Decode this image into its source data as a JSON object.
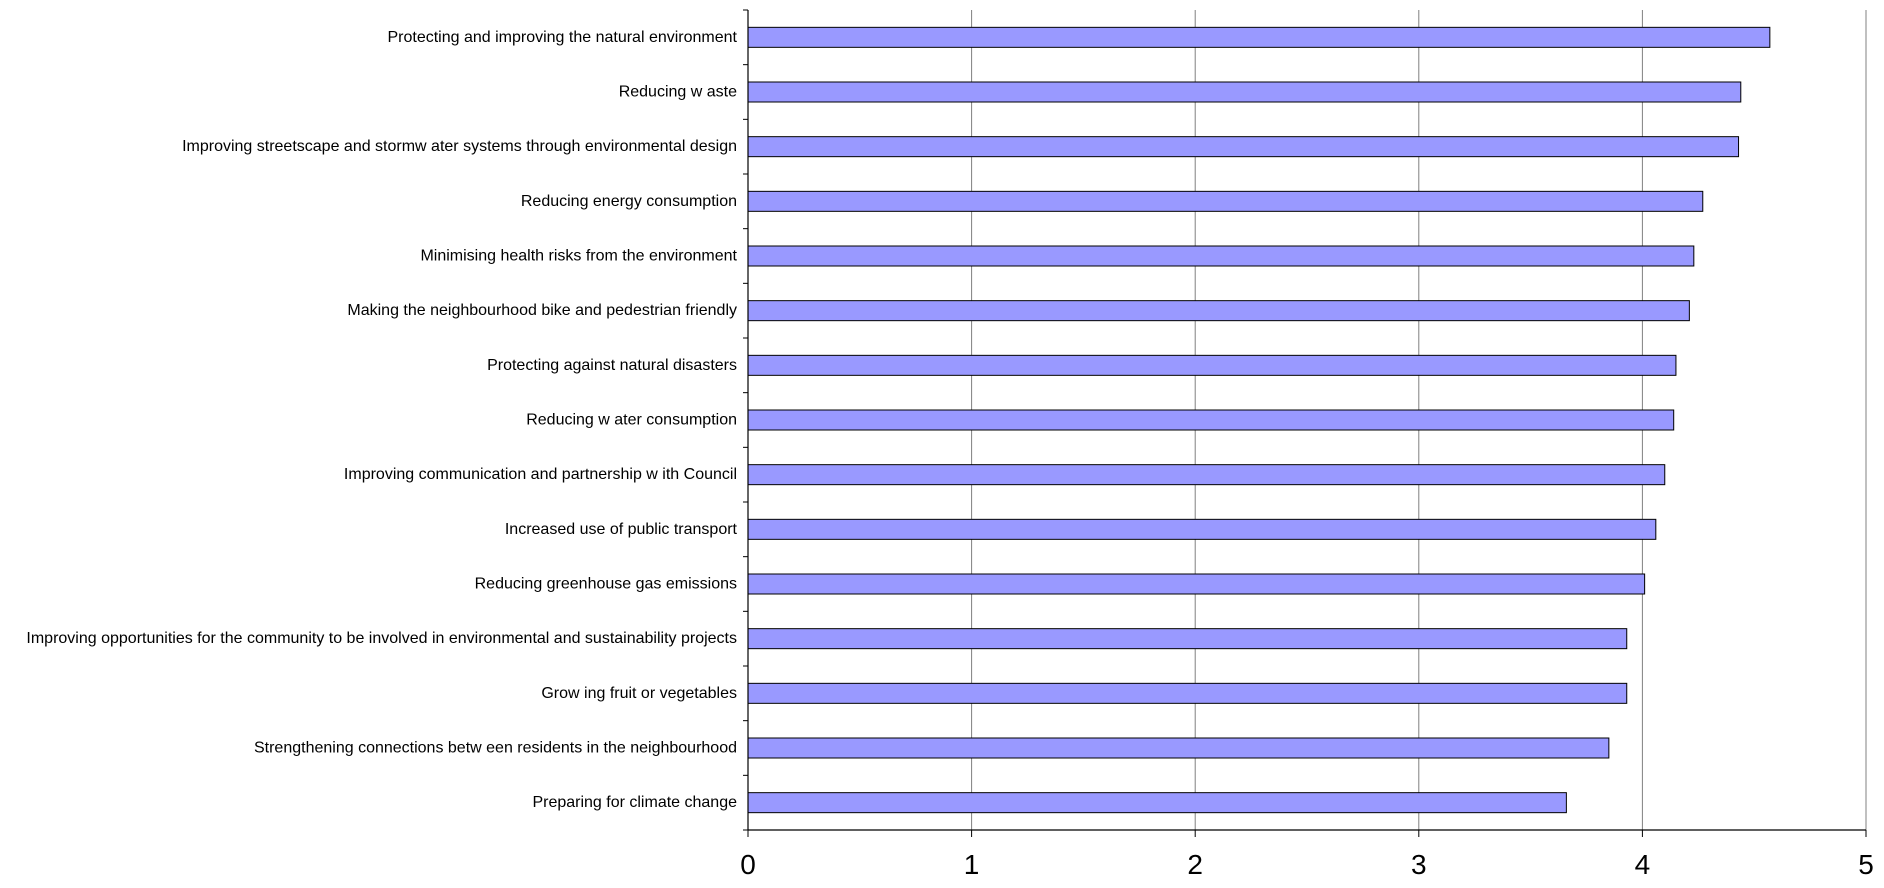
{
  "chart_data": {
    "type": "bar",
    "orientation": "horizontal",
    "title": "",
    "xlabel": "",
    "ylabel": "",
    "xlim": [
      0,
      5
    ],
    "x_ticks": [
      "0",
      "1",
      "2",
      "3",
      "4",
      "5"
    ],
    "grid": "vertical",
    "legend": "none",
    "bar_color": "#9999ff",
    "bar_edge_color": "#000000",
    "categories": [
      "Protecting and improving the natural environment",
      "Reducing w aste",
      "Improving streetscape and stormw ater systems through environmental design",
      "Reducing energy consumption",
      "Minimising health risks from the environment",
      "Making the neighbourhood bike and pedestrian friendly",
      "Protecting against natural disasters",
      "Reducing w ater consumption",
      "Improving communication and partnership w ith Council",
      "Increased use of public transport",
      "Reducing greenhouse gas emissions",
      "Improving opportunities for the community to be involved in environmental and sustainability projects",
      "Grow ing fruit or vegetables",
      "Strengthening connections betw een residents in the neighbourhood",
      "Preparing for climate change"
    ],
    "values": [
      4.57,
      4.44,
      4.43,
      4.27,
      4.23,
      4.21,
      4.15,
      4.14,
      4.1,
      4.06,
      4.01,
      3.93,
      3.93,
      3.85,
      3.66
    ]
  }
}
